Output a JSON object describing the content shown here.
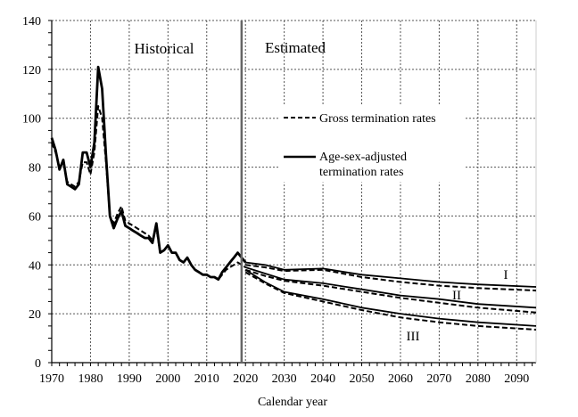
{
  "chart_data": {
    "type": "line",
    "title": "",
    "xlabel": "Calendar year",
    "ylabel": "",
    "xlim": [
      1970,
      2095
    ],
    "ylim": [
      0,
      140
    ],
    "xticks": [
      1970,
      1980,
      1990,
      2000,
      2010,
      2020,
      2030,
      2040,
      2050,
      2060,
      2070,
      2080,
      2090
    ],
    "yticks": [
      0,
      20,
      40,
      60,
      80,
      100,
      120,
      140
    ],
    "grid": true,
    "legend_placement": "center-right",
    "annotations": {
      "historical": "Historical",
      "estimated": "Estimated",
      "divider_year": 2019,
      "alt_I": "I",
      "alt_II": "II",
      "alt_III": "III"
    },
    "legend": [
      {
        "label": "Gross termination rates",
        "style": "dashed"
      },
      {
        "label_line1": "Age-sex-adjusted",
        "label_line2": "termination rates",
        "style": "solid"
      }
    ],
    "series": [
      {
        "name": "Age-sex-adjusted termination rates",
        "style": "solid",
        "segment": "historical",
        "x": [
          1970,
          1971,
          1972,
          1973,
          1974,
          1975,
          1976,
          1977,
          1978,
          1979,
          1980,
          1981,
          1982,
          1983,
          1984,
          1985,
          1986,
          1987,
          1988,
          1989,
          1990,
          1991,
          1992,
          1993,
          1994,
          1995,
          1996,
          1997,
          1998,
          1999,
          2000,
          2001,
          2002,
          2003,
          2004,
          2005,
          2006,
          2007,
          2008,
          2009,
          2010,
          2011,
          2012,
          2013,
          2014,
          2015,
          2016,
          2017,
          2018,
          2019,
          2020
        ],
        "y": [
          92,
          87,
          79,
          83,
          73,
          72,
          71,
          73,
          86,
          86,
          80,
          90,
          121,
          112,
          85,
          60,
          55,
          59,
          62,
          56,
          55,
          54,
          53,
          52,
          51,
          51,
          49,
          57,
          45,
          46,
          48,
          45,
          45,
          42,
          41,
          43,
          40,
          38,
          37,
          36,
          36,
          35,
          35,
          34,
          37,
          39,
          41,
          43,
          45,
          43,
          41
        ]
      },
      {
        "name": "Gross termination rates",
        "style": "dashed",
        "segment": "historical",
        "x": [
          1970,
          1971,
          1972,
          1973,
          1974,
          1975,
          1976,
          1977,
          1978,
          1979,
          1980,
          1981,
          1982,
          1983,
          1984,
          1985,
          1986,
          1987,
          1988,
          1989,
          1990,
          1991,
          1992,
          1993,
          1994,
          1995,
          1996,
          1997,
          1998,
          1999,
          2000,
          2001,
          2002,
          2003,
          2004,
          2005,
          2006,
          2007,
          2008,
          2009,
          2010,
          2011,
          2012,
          2013,
          2014,
          2015,
          2016,
          2017,
          2018,
          2019,
          2020
        ],
        "y": [
          90,
          86,
          80,
          82,
          74,
          73,
          72,
          74,
          82,
          82,
          77,
          86,
          105,
          100,
          82,
          60,
          57,
          61,
          64,
          58,
          57,
          56,
          55,
          54,
          53,
          52,
          50,
          55,
          45,
          46,
          48,
          45,
          45,
          42,
          41,
          43,
          40,
          38,
          37,
          36,
          36,
          35,
          35,
          34,
          36,
          38,
          39,
          40,
          41,
          40,
          39
        ]
      },
      {
        "name": "I",
        "style": "solid",
        "x": [
          2020,
          2025,
          2030,
          2040,
          2050,
          2060,
          2070,
          2080,
          2095
        ],
        "y": [
          41,
          40,
          38,
          38.5,
          36,
          34.5,
          33,
          32,
          31
        ]
      },
      {
        "name": "I",
        "style": "dashed",
        "x": [
          2020,
          2025,
          2030,
          2040,
          2050,
          2060,
          2070,
          2080,
          2095
        ],
        "y": [
          40,
          39,
          37.5,
          38,
          35,
          33,
          31.5,
          30.5,
          29.5
        ]
      },
      {
        "name": "II",
        "style": "solid",
        "x": [
          2020,
          2025,
          2030,
          2040,
          2050,
          2060,
          2070,
          2080,
          2095
        ],
        "y": [
          39,
          36.5,
          34,
          32.5,
          30,
          27.5,
          26,
          24,
          22.5
        ]
      },
      {
        "name": "II",
        "style": "dashed",
        "x": [
          2020,
          2025,
          2030,
          2040,
          2050,
          2060,
          2070,
          2080,
          2095
        ],
        "y": [
          38,
          35.5,
          33.5,
          31.5,
          29,
          26.5,
          24.5,
          22.5,
          20.5
        ]
      },
      {
        "name": "III",
        "style": "solid",
        "x": [
          2020,
          2025,
          2030,
          2040,
          2050,
          2060,
          2070,
          2080,
          2095
        ],
        "y": [
          38,
          33,
          29,
          26,
          22.5,
          20,
          18,
          16.5,
          15
        ]
      },
      {
        "name": "III",
        "style": "dashed",
        "x": [
          2020,
          2025,
          2030,
          2040,
          2050,
          2060,
          2070,
          2080,
          2095
        ],
        "y": [
          37,
          32.5,
          28.5,
          25,
          21.5,
          18.5,
          16.5,
          15,
          13.5
        ]
      }
    ],
    "colors": {
      "line": "#000000",
      "grid": "#555555",
      "divider": "#666666"
    }
  }
}
